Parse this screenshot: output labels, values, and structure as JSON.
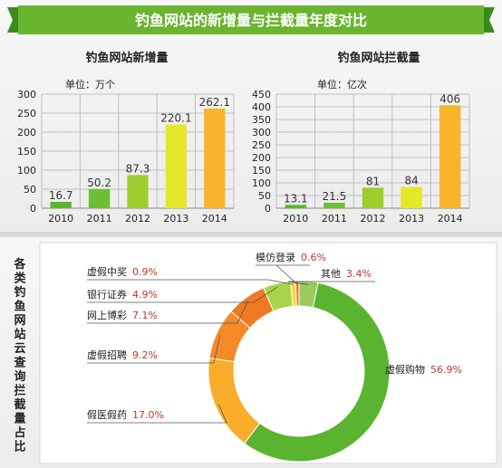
{
  "banner": {
    "title": "钓鱼网站的新增量与拦截量年度对比"
  },
  "colors": {
    "banner": "#6ab530",
    "banner_dark": "#3c8a1a",
    "bar_gradient": [
      "#5bb531",
      "#6cbf35",
      "#9cce2e",
      "#e4e82a",
      "#f7b52c"
    ],
    "grid": "#bfbfbf",
    "pie_value_text": "#c0392b",
    "panel_bg": "#f3f3f3"
  },
  "chart_data": [
    {
      "type": "bar",
      "title": "钓鱼网站新增量",
      "unit_label": "单位：万个",
      "categories": [
        "2010",
        "2011",
        "2012",
        "2013",
        "2014"
      ],
      "values": [
        16.7,
        50.2,
        87.3,
        220.1,
        262.1
      ],
      "value_labels": [
        "16.7",
        "50.2",
        "87.3",
        "220.1",
        "262.1"
      ],
      "ylim": [
        0,
        300
      ],
      "yticks": [
        0,
        50,
        100,
        150,
        200,
        250,
        300
      ],
      "grid": true
    },
    {
      "type": "bar",
      "title": "钓鱼网站拦截量",
      "unit_label": "单位：亿次",
      "categories": [
        "2010",
        "2011",
        "2012",
        "2013",
        "2014"
      ],
      "values": [
        13.1,
        21.5,
        81,
        84,
        406
      ],
      "value_labels": [
        "13.1",
        "21.5",
        "81",
        "84",
        "406"
      ],
      "ylim": [
        0,
        450
      ],
      "yticks": [
        0,
        50,
        100,
        150,
        200,
        250,
        300,
        350,
        400,
        450
      ],
      "grid": true
    },
    {
      "type": "pie",
      "title": "各类钓鱼网站云查询拦截量占比",
      "slices": [
        {
          "name": "虚假购物",
          "value": 56.9,
          "value_label": "56.9%",
          "color": "#5ab42f"
        },
        {
          "name": "假医假药",
          "value": 17.0,
          "value_label": "17.0%",
          "color": "#f9ad2b"
        },
        {
          "name": "虚假招聘",
          "value": 9.2,
          "value_label": "9.2%",
          "color": "#f48a27"
        },
        {
          "name": "网上博彩",
          "value": 7.1,
          "value_label": "7.1%",
          "color": "#ef7a22"
        },
        {
          "name": "银行证券",
          "value": 4.9,
          "value_label": "4.9%",
          "color": "#a9d34a"
        },
        {
          "name": "虚假中奖",
          "value": 0.9,
          "value_label": "0.9%",
          "color": "#f5d93a"
        },
        {
          "name": "模仿登录",
          "value": 0.6,
          "value_label": "0.6%",
          "color": "#e8792a"
        },
        {
          "name": "其他",
          "value": 3.4,
          "value_label": "3.4%",
          "color": "#9bc95a"
        }
      ]
    }
  ]
}
